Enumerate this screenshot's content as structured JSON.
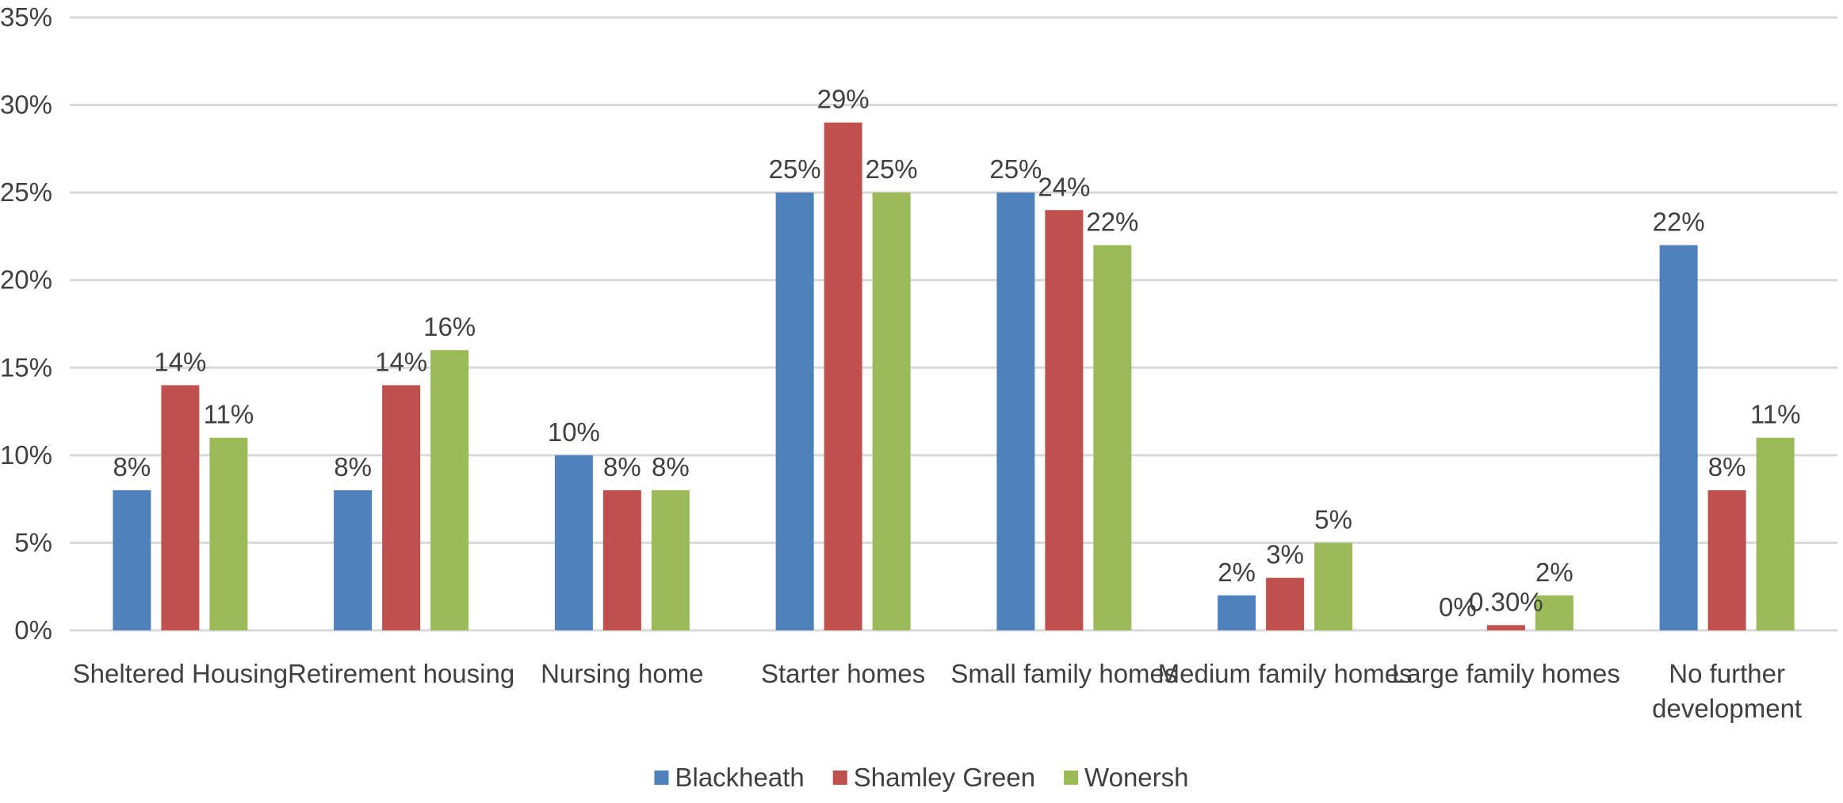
{
  "chart_data": {
    "type": "bar",
    "categories": [
      [
        "Sheltered Housing"
      ],
      [
        "Retirement housing"
      ],
      [
        "Nursing home"
      ],
      [
        "Starter homes"
      ],
      [
        "Small family homes"
      ],
      [
        "Medium family homes"
      ],
      [
        "Large family homes"
      ],
      [
        "No further",
        "development"
      ]
    ],
    "series": [
      {
        "name": "Blackheath",
        "color": "#4F81BD",
        "values": [
          8,
          8,
          10,
          25,
          25,
          2,
          0,
          22
        ],
        "labels": [
          "8%",
          "8%",
          "10%",
          "25%",
          "25%",
          "2%",
          "0%",
          "22%"
        ]
      },
      {
        "name": "Shamley Green",
        "color": "#C0504D",
        "values": [
          14,
          14,
          8,
          29,
          24,
          3,
          0.3,
          8
        ],
        "labels": [
          "14%",
          "14%",
          "8%",
          "29%",
          "24%",
          "3%",
          "0.30%",
          "8%"
        ]
      },
      {
        "name": "Wonersh",
        "color": "#9BBB59",
        "values": [
          11,
          16,
          8,
          25,
          22,
          5,
          2,
          11
        ],
        "labels": [
          "11%",
          "16%",
          "8%",
          "25%",
          "22%",
          "5%",
          "2%",
          "11%"
        ]
      }
    ],
    "yticks": [
      0,
      5,
      10,
      15,
      20,
      25,
      30,
      35
    ],
    "ytick_labels": [
      "0%",
      "5%",
      "10%",
      "15%",
      "20%",
      "25%",
      "30%",
      "35%"
    ],
    "ylim": [
      0,
      35
    ],
    "grid": true,
    "legend_position": "bottom"
  }
}
